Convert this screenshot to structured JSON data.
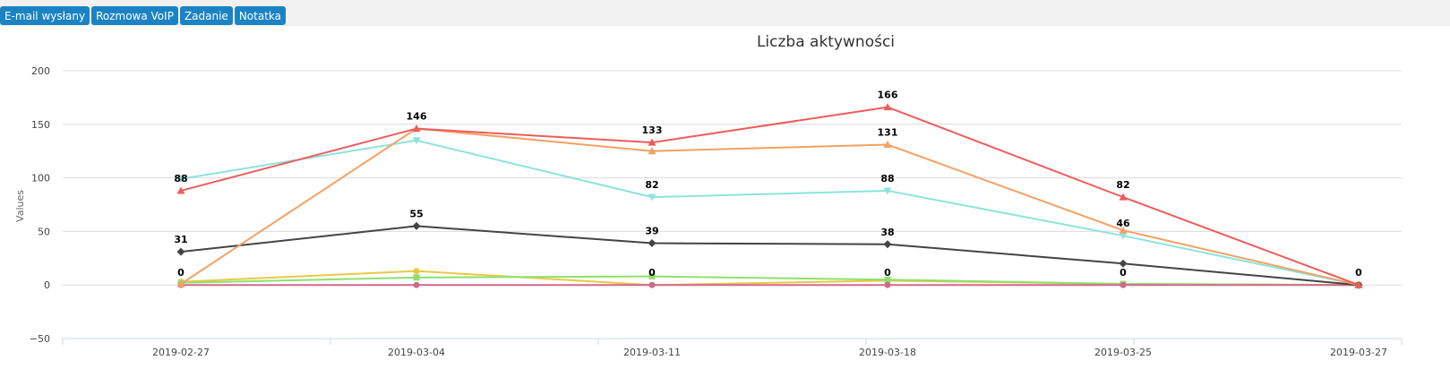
{
  "toolbar": {
    "buttons": [
      {
        "label": "E-mail wysłany"
      },
      {
        "label": "Rozmowa VoIP"
      },
      {
        "label": "Zadanie"
      },
      {
        "label": "Notatka"
      }
    ]
  },
  "chart_data": {
    "type": "line",
    "title": "Liczba aktywności",
    "xlabel": "",
    "ylabel": "Values",
    "ylim": [
      -50,
      200
    ],
    "yticks": [
      -50,
      0,
      50,
      100,
      150,
      200
    ],
    "grid": true,
    "legend": "none",
    "categories": [
      "2019-02-27",
      "2019-03-04",
      "2019-03-11",
      "2019-03-18",
      "2019-03-25",
      "2019-03-27"
    ],
    "series": [
      {
        "color": "#8de3dd",
        "marker": "triangle-down",
        "values": [
          99,
          135,
          82,
          88,
          46,
          0
        ]
      },
      {
        "color": "#e8c844",
        "marker": "circle",
        "values": [
          3,
          13,
          0,
          4,
          1,
          0
        ]
      },
      {
        "color": "#8ee06f",
        "marker": "square",
        "values": [
          2,
          7,
          8,
          5,
          1,
          0
        ]
      },
      {
        "color": "#d06a8c",
        "marker": "circle",
        "values": [
          0,
          0,
          0,
          0,
          0,
          0
        ]
      },
      {
        "color": "#444444",
        "marker": "diamond",
        "values": [
          31,
          55,
          39,
          38,
          20,
          0
        ]
      },
      {
        "color": "#f4a162",
        "marker": "triangle",
        "values": [
          1,
          146,
          125,
          131,
          51,
          0
        ]
      },
      {
        "color": "#ef5b5b",
        "marker": "triangle",
        "values": [
          88,
          146,
          133,
          166,
          82,
          0
        ]
      }
    ],
    "data_labels": [
      {
        "text": "88",
        "category": 0,
        "value": 88
      },
      {
        "text": "31",
        "category": 0,
        "value": 31
      },
      {
        "text": "0",
        "category": 0,
        "value": 0
      },
      {
        "text": "146",
        "category": 1,
        "value": 146
      },
      {
        "text": "55",
        "category": 1,
        "value": 55
      },
      {
        "text": "133",
        "category": 2,
        "value": 133
      },
      {
        "text": "82",
        "category": 2,
        "value": 82
      },
      {
        "text": "39",
        "category": 2,
        "value": 39
      },
      {
        "text": "0",
        "category": 2,
        "value": 0
      },
      {
        "text": "166",
        "category": 3,
        "value": 166
      },
      {
        "text": "131",
        "category": 3,
        "value": 131
      },
      {
        "text": "88",
        "category": 3,
        "value": 88
      },
      {
        "text": "38",
        "category": 3,
        "value": 38
      },
      {
        "text": "0",
        "category": 3,
        "value": 0
      },
      {
        "text": "82",
        "category": 4,
        "value": 82
      },
      {
        "text": "46",
        "category": 4,
        "value": 46
      },
      {
        "text": "0",
        "category": 4,
        "value": 0
      },
      {
        "text": "0",
        "category": 5,
        "value": 0
      }
    ]
  }
}
